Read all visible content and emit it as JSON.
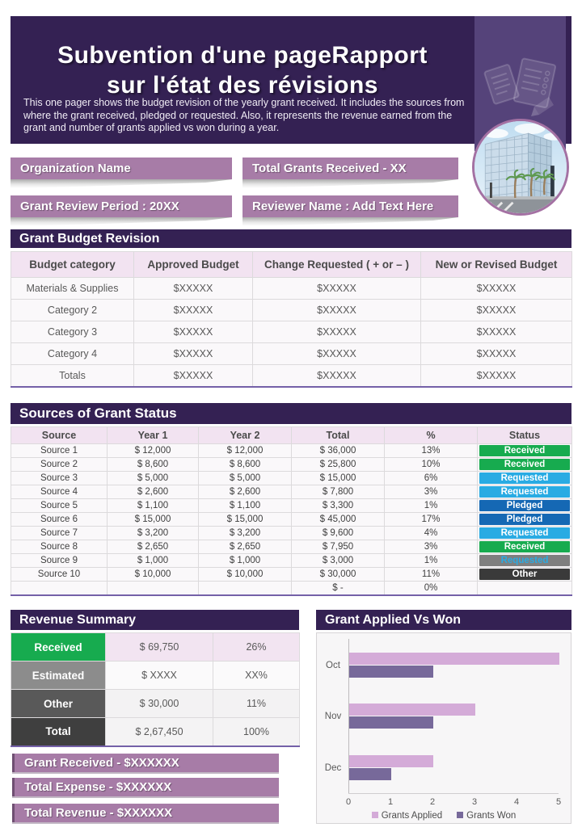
{
  "header": {
    "title_line1": "Subvention d'une pageRapport",
    "title_line2": "sur l'état des révisions",
    "description": "This one pager shows the budget revision of the yearly grant received. It includes the sources from where the grant received, pledged or requested. Also, it represents the revenue earned from the grant and number of grants applied vs won during a year."
  },
  "info_bars": [
    "Organization Name",
    "Total Grants Received - XX",
    "Grant Review Period : 20XX",
    "Reviewer Name : Add Text Here"
  ],
  "budget": {
    "title": "Grant Budget Revision",
    "columns": [
      "Budget category",
      "Approved Budget",
      "Change Requested ( + or – )",
      "New or Revised Budget"
    ],
    "rows": [
      [
        "Materials & Supplies",
        "$XXXXX",
        "$XXXXX",
        "$XXXXX"
      ],
      [
        "Category 2",
        "$XXXXX",
        "$XXXXX",
        "$XXXXX"
      ],
      [
        "Category 3",
        "$XXXXX",
        "$XXXXX",
        "$XXXXX"
      ],
      [
        "Category 4",
        "$XXXXX",
        "$XXXXX",
        "$XXXXX"
      ],
      [
        "Totals",
        "$XXXXX",
        "$XXXXX",
        "$XXXXX"
      ]
    ]
  },
  "sources": {
    "title": "Sources of Grant Status",
    "columns": [
      "Source",
      "Year 1",
      "Year 2",
      "Total",
      "%",
      "Status"
    ],
    "rows": [
      {
        "cells": [
          "Source 1",
          "$ 12,000",
          "$ 12,000",
          "$ 36,000",
          "13%"
        ],
        "status": "Received",
        "status_type": "received"
      },
      {
        "cells": [
          "Source 2",
          "$ 8,600",
          "$ 8,600",
          "$ 25,800",
          "10%"
        ],
        "status": "Received",
        "status_type": "received"
      },
      {
        "cells": [
          "Source 3",
          "$ 5,000",
          "$ 5,000",
          "$ 15,000",
          "6%"
        ],
        "status": "Requested",
        "status_type": "requested"
      },
      {
        "cells": [
          "Source 4",
          "$ 2,600",
          "$ 2,600",
          "$ 7,800",
          "3%"
        ],
        "status": "Requested",
        "status_type": "requested"
      },
      {
        "cells": [
          "Source 5",
          "$ 1,100",
          "$ 1,100",
          "$ 3,300",
          "1%"
        ],
        "status": "Pledged",
        "status_type": "pledged"
      },
      {
        "cells": [
          "Source 6",
          "$ 15,000",
          "$ 15,000",
          "$ 45,000",
          "17%"
        ],
        "status": "Pledged",
        "status_type": "pledged"
      },
      {
        "cells": [
          "Source 7",
          "$ 3,200",
          "$ 3,200",
          "$ 9,600",
          "4%"
        ],
        "status": "Requested",
        "status_type": "requested"
      },
      {
        "cells": [
          "Source 8",
          "$ 2,650",
          "$ 2,650",
          "$ 7,950",
          "3%"
        ],
        "status": "Received",
        "status_type": "received"
      },
      {
        "cells": [
          "Source 9",
          "$ 1,000",
          "$ 1,000",
          "$ 3,000",
          "1%"
        ],
        "status": "Requested",
        "status_type": "requested-muted"
      },
      {
        "cells": [
          "Source 10",
          "$ 10,000",
          "$ 10,000",
          "$ 30,000",
          "11%"
        ],
        "status": "Other",
        "status_type": "other"
      },
      {
        "cells": [
          "",
          "",
          "",
          "$ -",
          "0%"
        ],
        "status": null,
        "status_type": null
      }
    ],
    "status_colors": {
      "received": "#17AB4F",
      "requested": "#29ABE3",
      "pledged": "#1568B4",
      "requested-muted-bg": "#7F7F7F",
      "requested-muted-text": "#29ABE3",
      "other": "#3A3A3A"
    }
  },
  "revenue": {
    "title": "Revenue Summary",
    "rows": [
      {
        "label": "Received",
        "value": "$ 69,750",
        "pct": "26%",
        "label_color": "#17AB4F"
      },
      {
        "label": "Estimated",
        "value": "$ XXXX",
        "pct": "XX%",
        "label_color": "#8C8C8C"
      },
      {
        "label": "Other",
        "value": "$ 30,000",
        "pct": "11%",
        "label_color": "#595959"
      },
      {
        "label": "Total",
        "value": "$ 2,67,450",
        "pct": "100%",
        "label_color": "#3F3F3F"
      }
    ]
  },
  "bottom_bars": [
    "Grant Received - $XXXXXX",
    "Total Expense - $XXXXXX",
    "Total Revenue - $XXXXXX"
  ],
  "chart_data": {
    "type": "bar",
    "orientation": "horizontal",
    "title": "Grant Applied Vs Won",
    "categories": [
      "Oct",
      "Nov",
      "Dec"
    ],
    "series": [
      {
        "name": "Grants Applied",
        "values": [
          5,
          3,
          2
        ],
        "color": "#D4ABD8"
      },
      {
        "name": "Grants Won",
        "values": [
          2,
          2,
          1
        ],
        "color": "#77699A"
      }
    ],
    "xlim": [
      0,
      5
    ],
    "xticks": [
      0,
      1,
      2,
      3,
      4,
      5
    ],
    "legend_position": "bottom",
    "grid": false
  },
  "colors": {
    "dark_purple": "#342153",
    "panel_purple": "#55437A",
    "mauve": "#A77CA7",
    "pink_header": "#F2E3F1",
    "purple_line": "#7460A8"
  }
}
